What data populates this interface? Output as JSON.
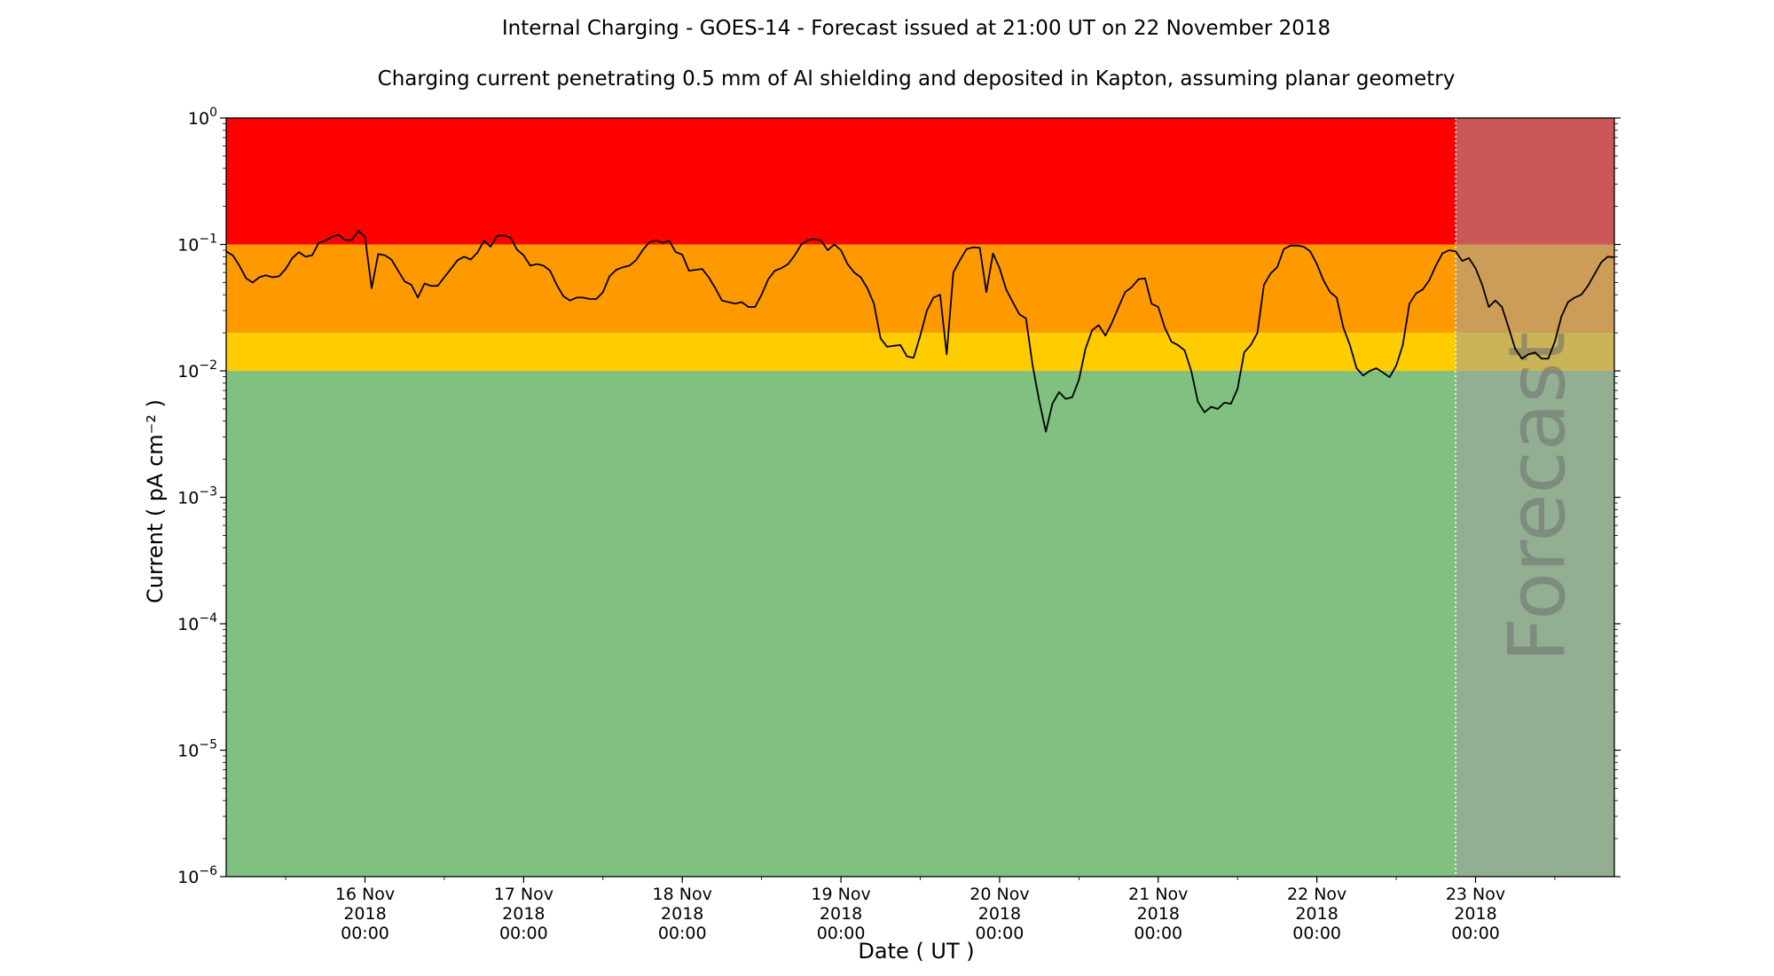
{
  "chart_data": {
    "type": "line",
    "title": "Internal Charging - GOES-14 - Forecast issued at 21:00 UT on 22 November 2018",
    "subtitle": "Charging current penetrating 0.5 mm of Al shielding and deposited in Kapton, assuming planar geometry",
    "xlabel": "Date ( UT )",
    "ylabel": "Current ( pA cm⁻² )",
    "y_scale": "log",
    "ylim_exponents": [
      -6,
      0
    ],
    "xlim": [
      "2018-11-15 03:00",
      "2018-11-23 21:00"
    ],
    "x_ticks": [
      {
        "date": "16 Nov",
        "year": "2018",
        "time": "00:00",
        "x": "2018-11-16 00:00"
      },
      {
        "date": "17 Nov",
        "year": "2018",
        "time": "00:00",
        "x": "2018-11-17 00:00"
      },
      {
        "date": "18 Nov",
        "year": "2018",
        "time": "00:00",
        "x": "2018-11-18 00:00"
      },
      {
        "date": "19 Nov",
        "year": "2018",
        "time": "00:00",
        "x": "2018-11-19 00:00"
      },
      {
        "date": "20 Nov",
        "year": "2018",
        "time": "00:00",
        "x": "2018-11-20 00:00"
      },
      {
        "date": "21 Nov",
        "year": "2018",
        "time": "00:00",
        "x": "2018-11-21 00:00"
      },
      {
        "date": "22 Nov",
        "year": "2018",
        "time": "00:00",
        "x": "2018-11-22 00:00"
      },
      {
        "date": "23 Nov",
        "year": "2018",
        "time": "00:00",
        "x": "2018-11-23 00:00"
      }
    ],
    "bands": [
      {
        "from": 0.1,
        "to": 1,
        "color": "#ff0000"
      },
      {
        "from": 0.02,
        "to": 0.1,
        "color": "#ff9900"
      },
      {
        "from": 0.01,
        "to": 0.02,
        "color": "#ffcc00"
      },
      {
        "from": 1e-06,
        "to": 0.01,
        "color": "#80c080"
      }
    ],
    "forecast": {
      "label": "Forecast",
      "start": "2018-11-22 21:00",
      "overlay_color": "#a0a0a0",
      "divider_color": "#ffffff"
    },
    "series": [
      {
        "color": "#000000",
        "points": [
          [
            "2018-11-15 03:00",
            0.088
          ],
          [
            "2018-11-15 04:00",
            0.082
          ],
          [
            "2018-11-15 05:00",
            0.068
          ],
          [
            "2018-11-15 06:00",
            0.054
          ],
          [
            "2018-11-15 07:00",
            0.05
          ],
          [
            "2018-11-15 08:00",
            0.055
          ],
          [
            "2018-11-15 09:00",
            0.057
          ],
          [
            "2018-11-15 10:00",
            0.055
          ],
          [
            "2018-11-15 11:00",
            0.056
          ],
          [
            "2018-11-15 12:00",
            0.064
          ],
          [
            "2018-11-15 13:00",
            0.078
          ],
          [
            "2018-11-15 14:00",
            0.087
          ],
          [
            "2018-11-15 15:00",
            0.08
          ],
          [
            "2018-11-15 16:00",
            0.082
          ],
          [
            "2018-11-15 17:00",
            0.103
          ],
          [
            "2018-11-15 18:00",
            0.107
          ],
          [
            "2018-11-15 19:00",
            0.115
          ],
          [
            "2018-11-15 20:00",
            0.119
          ],
          [
            "2018-11-15 21:00",
            0.108
          ],
          [
            "2018-11-15 22:00",
            0.108
          ],
          [
            "2018-11-15 23:00",
            0.128
          ],
          [
            "2018-11-16 00:00",
            0.115
          ],
          [
            "2018-11-16 01:00",
            0.045
          ],
          [
            "2018-11-16 02:00",
            0.084
          ],
          [
            "2018-11-16 03:00",
            0.082
          ],
          [
            "2018-11-16 04:00",
            0.076
          ],
          [
            "2018-11-16 05:00",
            0.062
          ],
          [
            "2018-11-16 06:00",
            0.051
          ],
          [
            "2018-11-16 07:00",
            0.048
          ],
          [
            "2018-11-16 08:00",
            0.038
          ],
          [
            "2018-11-16 09:00",
            0.049
          ],
          [
            "2018-11-16 10:00",
            0.047
          ],
          [
            "2018-11-16 11:00",
            0.047
          ],
          [
            "2018-11-16 12:00",
            0.055
          ],
          [
            "2018-11-16 13:00",
            0.064
          ],
          [
            "2018-11-16 14:00",
            0.075
          ],
          [
            "2018-11-16 15:00",
            0.08
          ],
          [
            "2018-11-16 16:00",
            0.076
          ],
          [
            "2018-11-16 17:00",
            0.086
          ],
          [
            "2018-11-16 18:00",
            0.107
          ],
          [
            "2018-11-16 19:00",
            0.096
          ],
          [
            "2018-11-16 20:00",
            0.117
          ],
          [
            "2018-11-16 21:00",
            0.118
          ],
          [
            "2018-11-16 22:00",
            0.113
          ],
          [
            "2018-11-16 23:00",
            0.091
          ],
          [
            "2018-11-17 00:00",
            0.082
          ],
          [
            "2018-11-17 01:00",
            0.068
          ],
          [
            "2018-11-17 02:00",
            0.07
          ],
          [
            "2018-11-17 03:00",
            0.068
          ],
          [
            "2018-11-17 04:00",
            0.062
          ],
          [
            "2018-11-17 05:00",
            0.048
          ],
          [
            "2018-11-17 06:00",
            0.039
          ],
          [
            "2018-11-17 07:00",
            0.036
          ],
          [
            "2018-11-17 08:00",
            0.038
          ],
          [
            "2018-11-17 09:00",
            0.038
          ],
          [
            "2018-11-17 10:00",
            0.037
          ],
          [
            "2018-11-17 11:00",
            0.037
          ],
          [
            "2018-11-17 12:00",
            0.042
          ],
          [
            "2018-11-17 13:00",
            0.056
          ],
          [
            "2018-11-17 14:00",
            0.063
          ],
          [
            "2018-11-17 15:00",
            0.066
          ],
          [
            "2018-11-17 16:00",
            0.068
          ],
          [
            "2018-11-17 17:00",
            0.075
          ],
          [
            "2018-11-17 18:00",
            0.09
          ],
          [
            "2018-11-17 19:00",
            0.104
          ],
          [
            "2018-11-17 20:00",
            0.108
          ],
          [
            "2018-11-17 21:00",
            0.103
          ],
          [
            "2018-11-17 22:00",
            0.107
          ],
          [
            "2018-11-17 23:00",
            0.087
          ],
          [
            "2018-11-18 00:00",
            0.083
          ],
          [
            "2018-11-18 01:00",
            0.062
          ],
          [
            "2018-11-18 02:00",
            0.063
          ],
          [
            "2018-11-18 03:00",
            0.064
          ],
          [
            "2018-11-18 04:00",
            0.055
          ],
          [
            "2018-11-18 05:00",
            0.045
          ],
          [
            "2018-11-18 06:00",
            0.036
          ],
          [
            "2018-11-18 07:00",
            0.035
          ],
          [
            "2018-11-18 08:00",
            0.034
          ],
          [
            "2018-11-18 09:00",
            0.035
          ],
          [
            "2018-11-18 10:00",
            0.032
          ],
          [
            "2018-11-18 11:00",
            0.032
          ],
          [
            "2018-11-18 12:00",
            0.04
          ],
          [
            "2018-11-18 13:00",
            0.053
          ],
          [
            "2018-11-18 14:00",
            0.062
          ],
          [
            "2018-11-18 15:00",
            0.065
          ],
          [
            "2018-11-18 16:00",
            0.07
          ],
          [
            "2018-11-18 17:00",
            0.082
          ],
          [
            "2018-11-18 18:00",
            0.1
          ],
          [
            "2018-11-18 19:00",
            0.108
          ],
          [
            "2018-11-18 20:00",
            0.11
          ],
          [
            "2018-11-18 21:00",
            0.107
          ],
          [
            "2018-11-18 22:00",
            0.09
          ],
          [
            "2018-11-18 23:00",
            0.1
          ],
          [
            "2018-11-19 00:00",
            0.09
          ],
          [
            "2018-11-19 01:00",
            0.07
          ],
          [
            "2018-11-19 02:00",
            0.06
          ],
          [
            "2018-11-19 03:00",
            0.055
          ],
          [
            "2018-11-19 04:00",
            0.045
          ],
          [
            "2018-11-19 05:00",
            0.034
          ],
          [
            "2018-11-19 06:00",
            0.018
          ],
          [
            "2018-11-19 07:00",
            0.0155
          ],
          [
            "2018-11-19 08:00",
            0.0158
          ],
          [
            "2018-11-19 09:00",
            0.016
          ],
          [
            "2018-11-19 10:00",
            0.013
          ],
          [
            "2018-11-19 11:00",
            0.0127
          ],
          [
            "2018-11-19 12:00",
            0.019
          ],
          [
            "2018-11-19 13:00",
            0.03
          ],
          [
            "2018-11-19 14:00",
            0.038
          ],
          [
            "2018-11-19 15:00",
            0.04
          ],
          [
            "2018-11-19 16:00",
            0.0135
          ],
          [
            "2018-11-19 17:00",
            0.06
          ],
          [
            "2018-11-19 18:00",
            0.075
          ],
          [
            "2018-11-19 19:00",
            0.092
          ],
          [
            "2018-11-19 20:00",
            0.095
          ],
          [
            "2018-11-19 21:00",
            0.094
          ],
          [
            "2018-11-19 22:00",
            0.042
          ],
          [
            "2018-11-19 23:00",
            0.085
          ],
          [
            "2018-11-20 00:00",
            0.065
          ],
          [
            "2018-11-20 01:00",
            0.044
          ],
          [
            "2018-11-20 02:00",
            0.035
          ],
          [
            "2018-11-20 03:00",
            0.028
          ],
          [
            "2018-11-20 04:00",
            0.026
          ],
          [
            "2018-11-20 05:00",
            0.011
          ],
          [
            "2018-11-20 06:00",
            0.0058
          ],
          [
            "2018-11-20 07:00",
            0.0033
          ],
          [
            "2018-11-20 08:00",
            0.0055
          ],
          [
            "2018-11-20 09:00",
            0.0068
          ],
          [
            "2018-11-20 10:00",
            0.006
          ],
          [
            "2018-11-20 11:00",
            0.0062
          ],
          [
            "2018-11-20 12:00",
            0.0085
          ],
          [
            "2018-11-20 13:00",
            0.015
          ],
          [
            "2018-11-20 14:00",
            0.021
          ],
          [
            "2018-11-20 15:00",
            0.023
          ],
          [
            "2018-11-20 16:00",
            0.019
          ],
          [
            "2018-11-20 17:00",
            0.024
          ],
          [
            "2018-11-20 18:00",
            0.032
          ],
          [
            "2018-11-20 19:00",
            0.042
          ],
          [
            "2018-11-20 20:00",
            0.046
          ],
          [
            "2018-11-20 21:00",
            0.053
          ],
          [
            "2018-11-20 22:00",
            0.054
          ],
          [
            "2018-11-20 23:00",
            0.034
          ],
          [
            "2018-11-21 00:00",
            0.032
          ],
          [
            "2018-11-21 01:00",
            0.022
          ],
          [
            "2018-11-21 02:00",
            0.017
          ],
          [
            "2018-11-21 03:00",
            0.016
          ],
          [
            "2018-11-21 04:00",
            0.0145
          ],
          [
            "2018-11-21 05:00",
            0.01
          ],
          [
            "2018-11-21 06:00",
            0.0057
          ],
          [
            "2018-11-21 07:00",
            0.0047
          ],
          [
            "2018-11-21 08:00",
            0.0052
          ],
          [
            "2018-11-21 09:00",
            0.005
          ],
          [
            "2018-11-21 10:00",
            0.0056
          ],
          [
            "2018-11-21 11:00",
            0.0055
          ],
          [
            "2018-11-21 12:00",
            0.0072
          ],
          [
            "2018-11-21 13:00",
            0.014
          ],
          [
            "2018-11-21 14:00",
            0.016
          ],
          [
            "2018-11-21 15:00",
            0.02
          ],
          [
            "2018-11-21 16:00",
            0.048
          ],
          [
            "2018-11-21 17:00",
            0.059
          ],
          [
            "2018-11-21 18:00",
            0.066
          ],
          [
            "2018-11-21 19:00",
            0.092
          ],
          [
            "2018-11-21 20:00",
            0.098
          ],
          [
            "2018-11-21 21:00",
            0.098
          ],
          [
            "2018-11-21 22:00",
            0.096
          ],
          [
            "2018-11-21 23:00",
            0.088
          ],
          [
            "2018-11-22 00:00",
            0.07
          ],
          [
            "2018-11-22 01:00",
            0.052
          ],
          [
            "2018-11-22 02:00",
            0.042
          ],
          [
            "2018-11-22 03:00",
            0.038
          ],
          [
            "2018-11-22 04:00",
            0.022
          ],
          [
            "2018-11-22 05:00",
            0.016
          ],
          [
            "2018-11-22 06:00",
            0.0105
          ],
          [
            "2018-11-22 07:00",
            0.0092
          ],
          [
            "2018-11-22 08:00",
            0.01
          ],
          [
            "2018-11-22 09:00",
            0.0105
          ],
          [
            "2018-11-22 10:00",
            0.0097
          ],
          [
            "2018-11-22 11:00",
            0.0089
          ],
          [
            "2018-11-22 12:00",
            0.011
          ],
          [
            "2018-11-22 13:00",
            0.016
          ],
          [
            "2018-11-22 14:00",
            0.034
          ],
          [
            "2018-11-22 15:00",
            0.041
          ],
          [
            "2018-11-22 16:00",
            0.044
          ],
          [
            "2018-11-22 17:00",
            0.052
          ],
          [
            "2018-11-22 18:00",
            0.068
          ],
          [
            "2018-11-22 19:00",
            0.085
          ],
          [
            "2018-11-22 20:00",
            0.09
          ],
          [
            "2018-11-22 21:00",
            0.088
          ],
          [
            "2018-11-22 22:00",
            0.074
          ],
          [
            "2018-11-22 23:00",
            0.078
          ],
          [
            "2018-11-23 00:00",
            0.065
          ],
          [
            "2018-11-23 01:00",
            0.048
          ],
          [
            "2018-11-23 02:00",
            0.032
          ],
          [
            "2018-11-23 03:00",
            0.036
          ],
          [
            "2018-11-23 04:00",
            0.032
          ],
          [
            "2018-11-23 05:00",
            0.022
          ],
          [
            "2018-11-23 06:00",
            0.015
          ],
          [
            "2018-11-23 07:00",
            0.0125
          ],
          [
            "2018-11-23 08:00",
            0.0135
          ],
          [
            "2018-11-23 09:00",
            0.014
          ],
          [
            "2018-11-23 10:00",
            0.0125
          ],
          [
            "2018-11-23 11:00",
            0.0125
          ],
          [
            "2018-11-23 12:00",
            0.017
          ],
          [
            "2018-11-23 13:00",
            0.027
          ],
          [
            "2018-11-23 14:00",
            0.035
          ],
          [
            "2018-11-23 15:00",
            0.038
          ],
          [
            "2018-11-23 16:00",
            0.04
          ],
          [
            "2018-11-23 17:00",
            0.047
          ],
          [
            "2018-11-23 18:00",
            0.058
          ],
          [
            "2018-11-23 19:00",
            0.072
          ],
          [
            "2018-11-23 20:00",
            0.08
          ],
          [
            "2018-11-23 21:00",
            0.079
          ]
        ]
      }
    ]
  }
}
